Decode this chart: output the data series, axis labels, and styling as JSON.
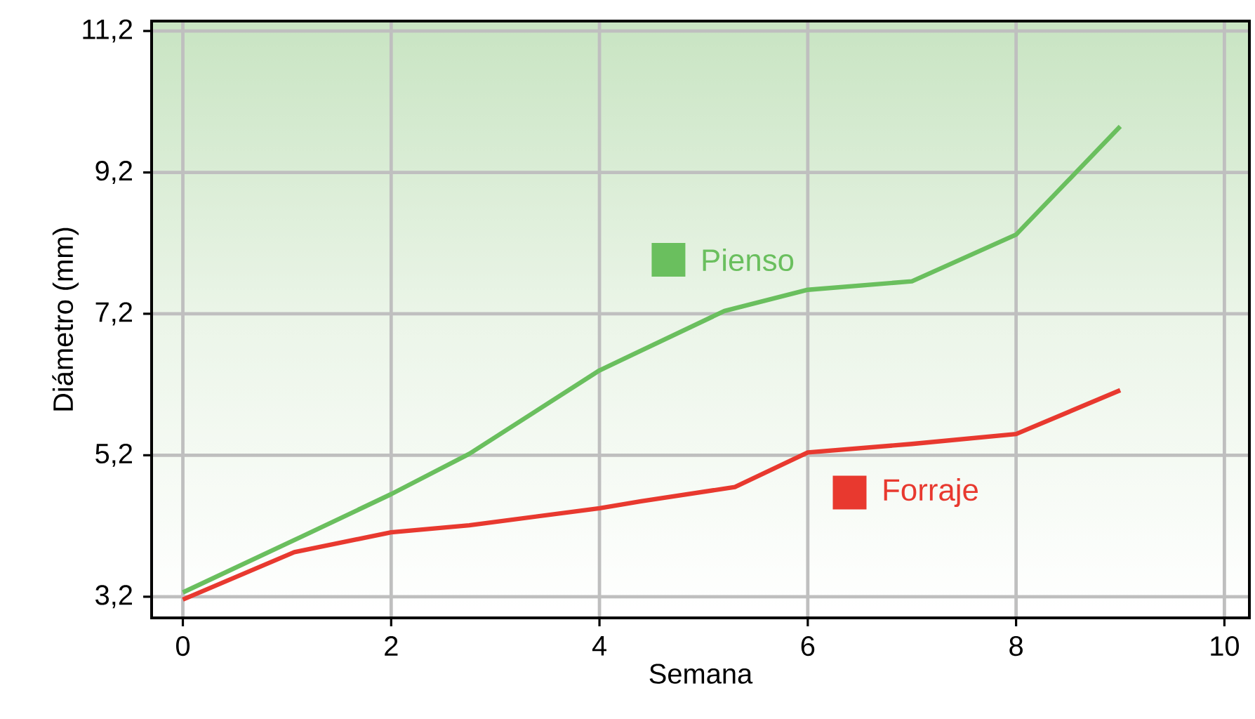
{
  "chart_data": {
    "type": "line",
    "xlabel": "Semana",
    "ylabel": "Diámetro (mm)",
    "xlim": [
      -0.3,
      10.24
    ],
    "ylim": [
      2.9,
      11.34
    ],
    "xticks": [
      0,
      2,
      4,
      6,
      8,
      10
    ],
    "yticks": [
      {
        "value": 3.2,
        "label": "3,2"
      },
      {
        "value": 5.2,
        "label": "5,2"
      },
      {
        "value": 7.2,
        "label": "7,2"
      },
      {
        "value": 9.2,
        "label": "9,2"
      },
      {
        "value": 11.2,
        "label": "11,2"
      }
    ],
    "grid": true,
    "legend": "center",
    "series": [
      {
        "name": "Pienso",
        "color": "#6abf5e",
        "x": [
          0,
          1.07,
          2,
          2.75,
          4,
          5.2,
          6,
          7,
          8,
          9
        ],
        "values": [
          3.26,
          4.0,
          4.65,
          5.22,
          6.4,
          7.24,
          7.54,
          7.66,
          8.32,
          9.85
        ]
      },
      {
        "name": "Forraje",
        "color": "#e8392f",
        "x": [
          0,
          1.07,
          2,
          2.75,
          4,
          4.4,
          5.3,
          6,
          7,
          8,
          9
        ],
        "values": [
          3.16,
          3.83,
          4.11,
          4.21,
          4.45,
          4.55,
          4.75,
          5.24,
          5.36,
          5.5,
          6.12
        ]
      }
    ]
  }
}
